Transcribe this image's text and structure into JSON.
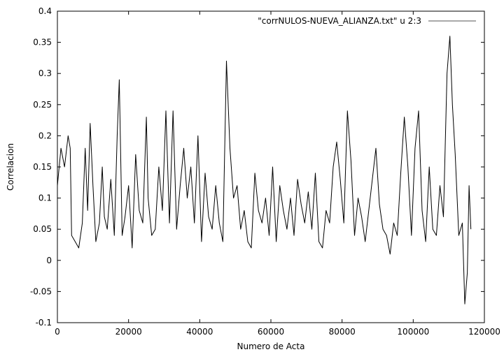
{
  "chart_data": {
    "type": "line",
    "title": "",
    "xlabel": "Numero de Acta",
    "ylabel": "Correlacion",
    "xlim": [
      0,
      120000
    ],
    "ylim": [
      -0.1,
      0.4
    ],
    "xticks": [
      0,
      20000,
      40000,
      60000,
      80000,
      100000,
      120000
    ],
    "yticks": [
      -0.1,
      -0.05,
      0,
      0.05,
      0.1,
      0.15,
      0.2,
      0.25,
      0.3,
      0.35,
      0.4
    ],
    "xtick_labels": [
      "0",
      "20000",
      "40000",
      "60000",
      "80000",
      "100000",
      "120000"
    ],
    "ytick_labels": [
      "-0.1",
      "-0.05",
      "0",
      "0.05",
      "0.1",
      "0.15",
      "0.2",
      "0.25",
      "0.3",
      "0.35",
      "0.4"
    ],
    "grid": false,
    "legend_position": "top-right",
    "series": [
      {
        "name": "\"corrNULOS-NUEVA_ALIANZA.txt\" u 2:3",
        "color": "#555555",
        "x": [
          0,
          1000,
          2000,
          3000,
          3600,
          4000,
          5000,
          6000,
          7000,
          7800,
          8500,
          9200,
          10000,
          10800,
          11800,
          12600,
          13200,
          14000,
          15000,
          16000,
          16800,
          17400,
          18200,
          19000,
          20000,
          21000,
          22000,
          23000,
          24000,
          25000,
          25500,
          26500,
          27500,
          28500,
          29500,
          30500,
          31500,
          32500,
          33500,
          34500,
          35500,
          36500,
          37500,
          38500,
          39500,
          40500,
          41500,
          42500,
          43500,
          44500,
          45500,
          46500,
          47500,
          48500,
          49500,
          50500,
          51500,
          52500,
          53500,
          54500,
          55500,
          56500,
          57500,
          58500,
          59500,
          60500,
          61500,
          62500,
          63500,
          64500,
          65500,
          66500,
          67500,
          68500,
          69500,
          70500,
          71500,
          72500,
          73500,
          74500,
          75500,
          76500,
          77500,
          78500,
          79500,
          80500,
          81500,
          82500,
          83500,
          84500,
          85500,
          86500,
          87500,
          88500,
          89500,
          90500,
          91500,
          92500,
          93500,
          94500,
          95500,
          96500,
          97500,
          98500,
          99500,
          100500,
          101500,
          102500,
          103500,
          104500,
          105500,
          106500,
          107500,
          108500,
          109500,
          110300,
          111000,
          111800,
          112800,
          113800,
          114500,
          115200,
          115700,
          116200
        ],
        "y": [
          0.12,
          0.18,
          0.15,
          0.2,
          0.18,
          0.04,
          0.03,
          0.02,
          0.06,
          0.18,
          0.08,
          0.22,
          0.12,
          0.03,
          0.06,
          0.15,
          0.07,
          0.05,
          0.13,
          0.04,
          0.2,
          0.29,
          0.04,
          0.07,
          0.12,
          0.02,
          0.17,
          0.08,
          0.06,
          0.23,
          0.1,
          0.04,
          0.05,
          0.15,
          0.08,
          0.24,
          0.06,
          0.24,
          0.05,
          0.12,
          0.18,
          0.1,
          0.15,
          0.06,
          0.2,
          0.03,
          0.14,
          0.07,
          0.05,
          0.12,
          0.06,
          0.03,
          0.32,
          0.18,
          0.1,
          0.12,
          0.05,
          0.08,
          0.03,
          0.02,
          0.14,
          0.08,
          0.06,
          0.1,
          0.04,
          0.15,
          0.03,
          0.12,
          0.08,
          0.05,
          0.1,
          0.04,
          0.13,
          0.09,
          0.06,
          0.11,
          0.05,
          0.14,
          0.03,
          0.02,
          0.08,
          0.06,
          0.15,
          0.19,
          0.13,
          0.06,
          0.24,
          0.16,
          0.04,
          0.1,
          0.07,
          0.03,
          0.08,
          0.13,
          0.18,
          0.09,
          0.05,
          0.04,
          0.01,
          0.06,
          0.04,
          0.14,
          0.23,
          0.15,
          0.04,
          0.18,
          0.24,
          0.08,
          0.03,
          0.15,
          0.05,
          0.04,
          0.12,
          0.07,
          0.3,
          0.36,
          0.25,
          0.17,
          0.04,
          0.06,
          -0.07,
          -0.02,
          0.12,
          0.05
        ]
      }
    ]
  }
}
